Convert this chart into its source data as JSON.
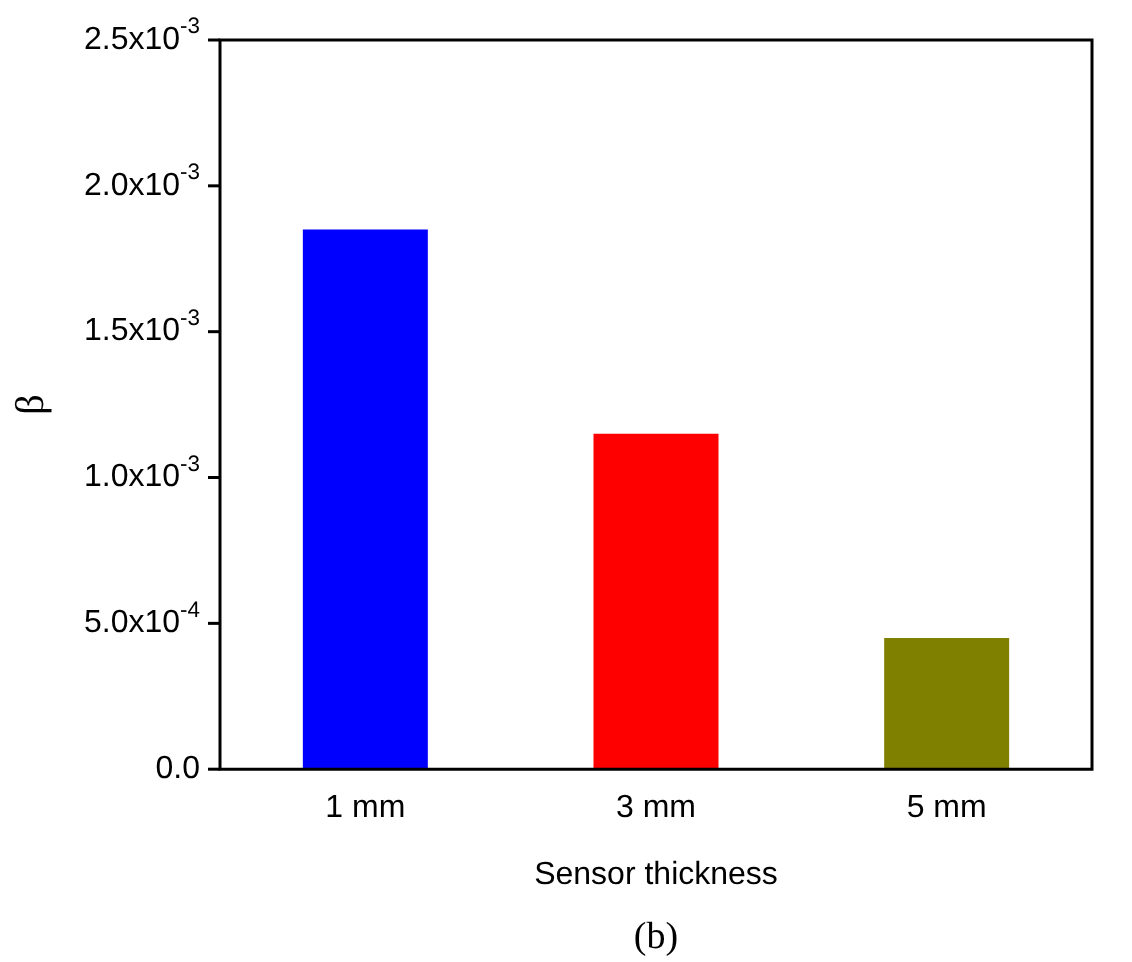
{
  "chart_data": {
    "type": "bar",
    "xlabel": "Sensor thickness",
    "ylabel": "β",
    "annotations": [
      "(b)"
    ],
    "categories": [
      "1 mm",
      "3 mm",
      "5 mm"
    ],
    "values": [
      0.00185,
      0.00115,
      0.00045
    ],
    "colors": [
      "#0000ff",
      "#ff0000",
      "#808000"
    ],
    "ylim": [
      0,
      0.0025
    ],
    "yticks": [
      {
        "value": 0,
        "label": "0.0"
      },
      {
        "value": 0.0005,
        "label": "5.0x10$^{-4}$"
      },
      {
        "value": 0.001,
        "label": "1.0x10$^{-3}$"
      },
      {
        "value": 0.0015,
        "label": "1.5x10$^{-3}$"
      },
      {
        "value": 0.002,
        "label": "2.0x10$^{-3}$"
      },
      {
        "value": 0.0025,
        "label": "2.5x10$^{-3}$"
      }
    ],
    "grid": false,
    "legend": false
  }
}
